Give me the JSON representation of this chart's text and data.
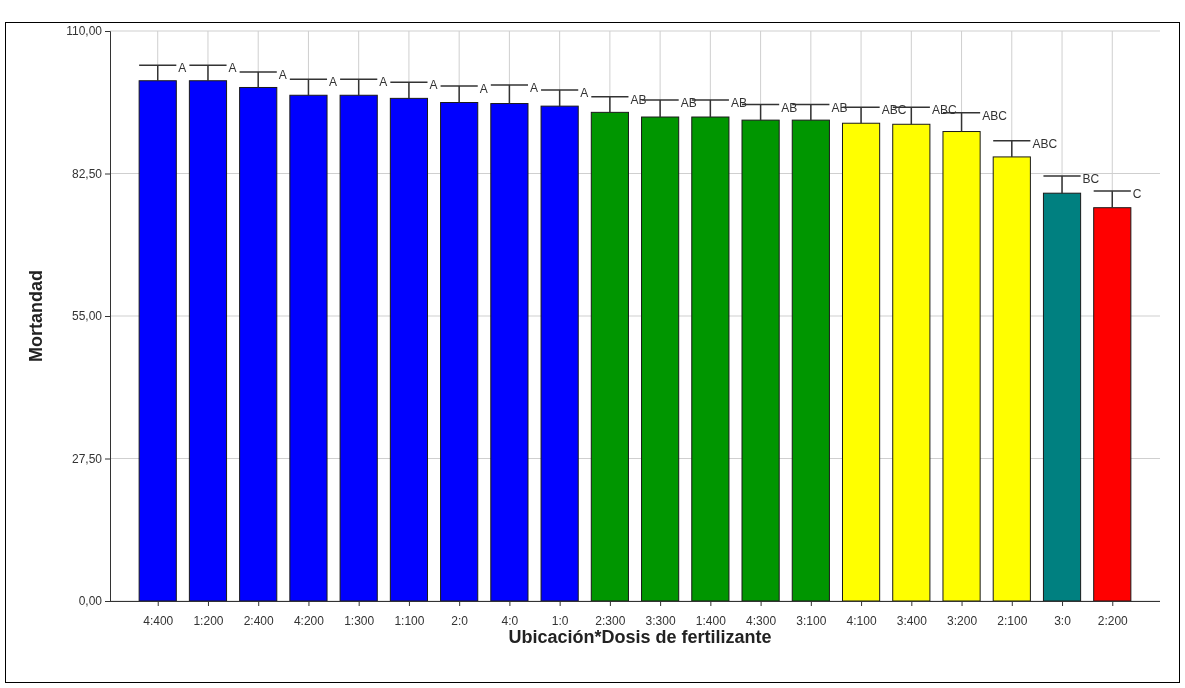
{
  "chart_data": {
    "type": "bar",
    "xlabel": "Ubicación*Dosis de fertilizante",
    "ylabel": "Mortandad",
    "categories": [
      "4:400",
      "1:200",
      "2:400",
      "4:200",
      "1:300",
      "1:100",
      "2:0",
      "4:0",
      "1:0",
      "2:300",
      "3:300",
      "1:400",
      "4:300",
      "3:100",
      "4:100",
      "3:400",
      "3:200",
      "2:100",
      "3:0",
      "2:200"
    ],
    "values": [
      100.4,
      100.4,
      99.1,
      97.6,
      97.6,
      97.0,
      96.2,
      96.0,
      95.5,
      94.3,
      93.4,
      93.4,
      92.8,
      92.8,
      92.2,
      92.0,
      90.6,
      85.7,
      78.7,
      75.9
    ],
    "errors": [
      [
        100.4,
        103.4
      ],
      [
        100.4,
        103.4
      ],
      [
        99.1,
        102.1
      ],
      [
        97.6,
        100.7
      ],
      [
        97.6,
        100.7
      ],
      [
        97.0,
        100.1
      ],
      [
        96.2,
        99.4
      ],
      [
        96.0,
        99.6
      ],
      [
        95.5,
        98.6
      ],
      [
        94.3,
        97.3
      ],
      [
        93.4,
        96.7
      ],
      [
        93.4,
        96.7
      ],
      [
        92.8,
        95.8
      ],
      [
        92.8,
        95.8
      ],
      [
        92.2,
        95.3
      ],
      [
        92.0,
        95.3
      ],
      [
        90.6,
        94.2
      ],
      [
        85.7,
        88.8
      ],
      [
        78.7,
        82.0
      ],
      [
        75.9,
        79.1
      ]
    ],
    "colors": [
      "#0000ff",
      "#0000ff",
      "#0000ff",
      "#0000ff",
      "#0000ff",
      "#0000ff",
      "#0000ff",
      "#0000ff",
      "#0000ff",
      "#009600",
      "#009600",
      "#009600",
      "#009600",
      "#009600",
      "#ffff00",
      "#ffff00",
      "#ffff00",
      "#ffff00",
      "#008080",
      "#ff0000"
    ],
    "ylim": [
      0,
      110
    ],
    "yticks": [
      {
        "value": 0,
        "label": "0,00"
      },
      {
        "value": 27.5,
        "label": "27,50"
      },
      {
        "value": 55,
        "label": "55,00"
      },
      {
        "value": 82.5,
        "label": "82,50"
      },
      {
        "value": 110,
        "label": "110,00"
      }
    ],
    "grid": true,
    "annotations": [
      {
        "text": "A",
        "x": "4:400",
        "y": 103.4
      },
      {
        "text": "A",
        "x": "1:200",
        "y": 103.4
      },
      {
        "text": "A",
        "x": "2:400",
        "y": 102.1
      },
      {
        "text": "A",
        "x": "4:200",
        "y": 100.7
      },
      {
        "text": "A",
        "x": "1:300",
        "y": 100.7
      },
      {
        "text": "A",
        "x": "1:100",
        "y": 100.1
      },
      {
        "text": "A",
        "x": "2:0",
        "y": 99.4
      },
      {
        "text": "A",
        "x": "4:0",
        "y": 99.6
      },
      {
        "text": "A",
        "x": "1:0",
        "y": 98.6
      },
      {
        "text": "AB",
        "x": "2:300",
        "y": 97.3
      },
      {
        "text": "AB",
        "x": "3:300",
        "y": 96.7
      },
      {
        "text": "AB",
        "x": "1:400",
        "y": 96.7
      },
      {
        "text": "AB",
        "x": "4:300",
        "y": 95.8
      },
      {
        "text": "AB",
        "x": "3:100",
        "y": 95.8
      },
      {
        "text": "ABC",
        "x": "4:100",
        "y": 95.3
      },
      {
        "text": "ABC",
        "x": "3:400",
        "y": 95.3
      },
      {
        "text": "ABC",
        "x": "3:200",
        "y": 94.2
      },
      {
        "text": "ABC",
        "x": "2:100",
        "y": 88.8
      },
      {
        "text": "BC",
        "x": "3:0",
        "y": 82.0
      },
      {
        "text": "C",
        "x": "2:200",
        "y": 79.1
      }
    ]
  }
}
